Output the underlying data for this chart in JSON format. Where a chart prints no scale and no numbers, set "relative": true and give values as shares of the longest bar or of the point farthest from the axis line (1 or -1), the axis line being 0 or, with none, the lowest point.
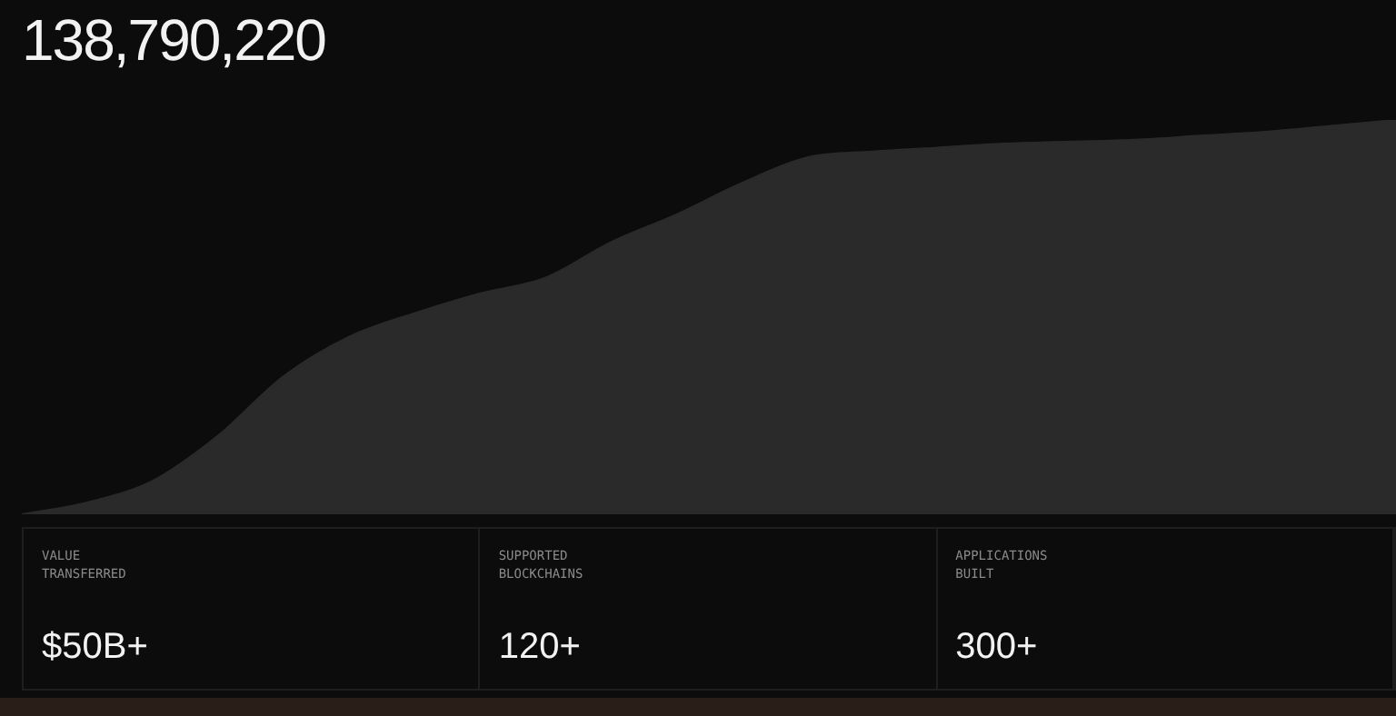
{
  "chart_data": {
    "type": "area",
    "title": "138,790,220",
    "relative": true,
    "color": "#2a2a2a",
    "categories": [
      null,
      null,
      null,
      null,
      null,
      null,
      null,
      null,
      null,
      null,
      null,
      null,
      null,
      null,
      null,
      null,
      null,
      null,
      null,
      null,
      null,
      null
    ],
    "values": [
      0,
      0.03,
      0.085,
      0.2,
      0.35,
      0.45,
      0.51,
      0.56,
      0.6,
      0.69,
      0.76,
      0.84,
      0.905,
      0.92,
      0.93,
      0.94,
      0.945,
      0.95,
      0.96,
      0.97,
      0.985,
      1
    ],
    "annotations": [
      "VALUE TRANSFERRED",
      "$50B+",
      "SUPPORTED BLOCKCHAINS",
      "120+",
      "APPLICATIONS BUILT",
      "300+"
    ]
  }
}
